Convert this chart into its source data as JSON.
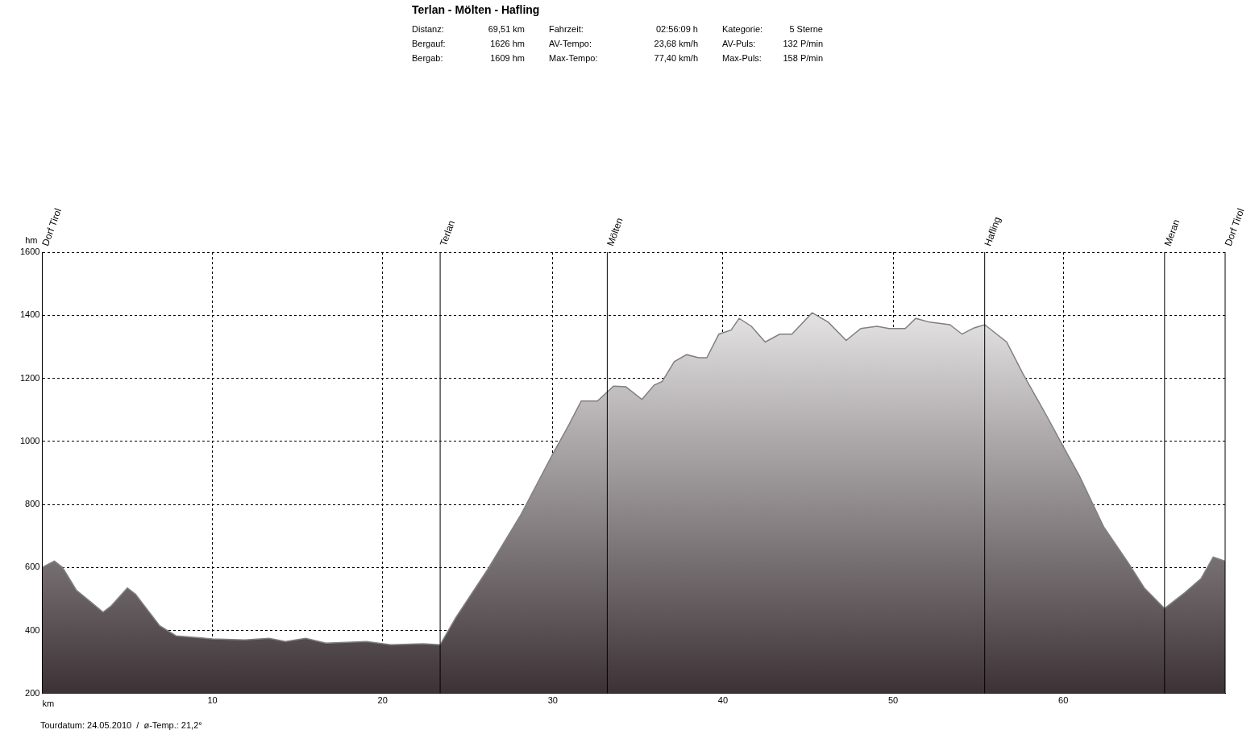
{
  "chart_data": {
    "type": "area",
    "title": "Terlan - Mölten - Hafling",
    "annotations": [
      "Distanz: 69,51 km",
      "Fahrzeit: 02:56:09 h",
      "Kategorie: 5 Sterne",
      "Bergauf: 1626 hm",
      "AV-Tempo: 23,68 km/h",
      "AV-Puls: 132 P/min",
      "Bergab: 1609 hm",
      "Max-Tempo: 77,40 km/h",
      "Max-Puls: 158 P/min",
      "Tourdatum: 24.05.2010  /  ø-Temp.: 21,2°"
    ],
    "xlabel": "km",
    "ylabel": "hm",
    "x": [
      0,
      0.71,
      1.19,
      2.0,
      2.86,
      3.57,
      4.05,
      5.0,
      5.48,
      6.19,
      6.9,
      7.86,
      9.05,
      10,
      11.9,
      13.33,
      14.29,
      15.48,
      16.67,
      19.05,
      20.48,
      22.38,
      23.38,
      24.29,
      26.19,
      28.1,
      30,
      30.95,
      31.67,
      32.62,
      33.57,
      34.29,
      35.24,
      35.95,
      36.43,
      37.14,
      37.86,
      38.57,
      39.05,
      39.76,
      40.48,
      40.95,
      41.67,
      42.48,
      43.33,
      44.05,
      45.24,
      46.19,
      47.24,
      48.1,
      49.05,
      49.76,
      50.71,
      51.33,
      52.14,
      53.33,
      54.05,
      54.76,
      55.38,
      56.67,
      57.62,
      59.05,
      60,
      60.95,
      62.38,
      63.81,
      64.76,
      65.95,
      67.14,
      68.1,
      68.81,
      69.51
    ],
    "series": [
      {
        "color": "#3c3236",
        "values": [
          600,
          620,
          600,
          528,
          490,
          458,
          478,
          535,
          515,
          465,
          415,
          383,
          378,
          373,
          370,
          375,
          365,
          375,
          360,
          365,
          355,
          358,
          355,
          440,
          595,
          765,
          960,
          1053,
          1128,
          1128,
          1175,
          1173,
          1133,
          1178,
          1190,
          1253,
          1275,
          1265,
          1265,
          1340,
          1353,
          1390,
          1365,
          1315,
          1340,
          1340,
          1408,
          1378,
          1320,
          1358,
          1365,
          1358,
          1358,
          1390,
          1378,
          1370,
          1340,
          1360,
          1370,
          1315,
          1215,
          1078,
          983,
          890,
          728,
          615,
          535,
          470,
          520,
          565,
          633,
          620
        ]
      }
    ],
    "xlim": [
      0,
      69.51
    ],
    "xticks": [
      10,
      20,
      30,
      40,
      50,
      60
    ],
    "ylim": [
      200,
      1600
    ],
    "yticks": [
      200,
      400,
      600,
      800,
      1000,
      1200,
      1400,
      1600
    ],
    "grid": true,
    "line_style": "dashed",
    "legend": false,
    "ref_lines": [
      {
        "axis": "x",
        "value": 0,
        "label": "Dorf Tirol",
        "color": "#000000"
      },
      {
        "axis": "x",
        "value": 23.38,
        "label": "Terlan",
        "color": "#000000"
      },
      {
        "axis": "x",
        "value": 33.2,
        "label": "Mölten",
        "color": "#000000"
      },
      {
        "axis": "x",
        "value": 55.38,
        "label": "Hafling",
        "color": "#000000"
      },
      {
        "axis": "x",
        "value": 65.95,
        "label": "Meran",
        "color": "#000000"
      },
      {
        "axis": "x",
        "value": 69.51,
        "label": "Dorf Tirol",
        "color": "#000000"
      }
    ]
  }
}
